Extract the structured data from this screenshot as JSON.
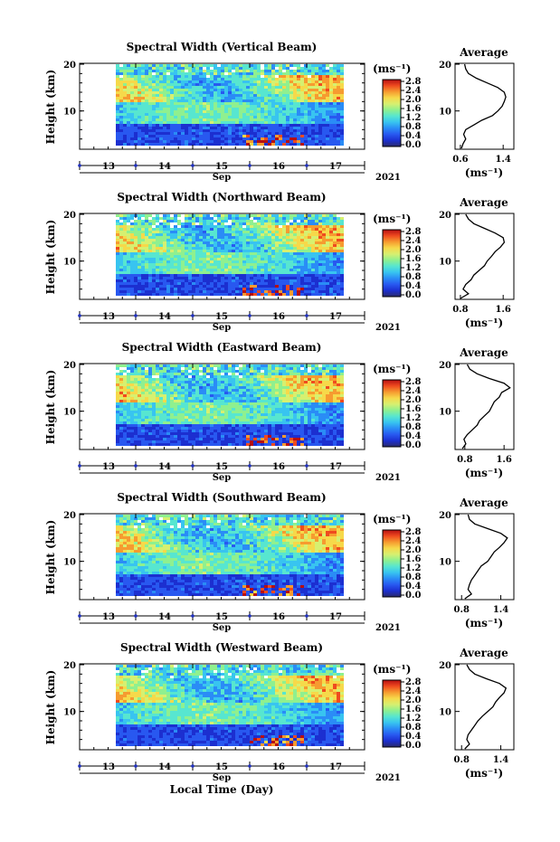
{
  "footer": {
    "xlabel": "Local Time (Day)"
  },
  "colorbar": {
    "unit_label": "(ms⁻¹)",
    "ticks": [
      "0.0",
      "0.4",
      "0.8",
      "1.2",
      "1.6",
      "2.0",
      "2.4",
      "2.8"
    ],
    "colors": [
      "#2a2a6a",
      "#1c2fd0",
      "#2858f0",
      "#2a8cf6",
      "#38c4f0",
      "#57e6d0",
      "#8ff08f",
      "#d6f070",
      "#f6d94a",
      "#f69b30",
      "#ef4b1f",
      "#b50f12"
    ]
  },
  "chart_data": [
    {
      "type": "heatmap",
      "title": "Spectral Width (Vertical Beam)",
      "ylabel": "Height (km)",
      "ylim": [
        2,
        20
      ],
      "yticks": [
        "10",
        "20"
      ],
      "xticks": [
        "13",
        "14",
        "15",
        "16",
        "17"
      ],
      "month_label": "Sep",
      "year_label": "2021",
      "z_label": "(ms⁻¹)",
      "z_range": [
        0.0,
        3.0
      ],
      "average_profile": {
        "title": "Average",
        "xlabel": "(ms⁻¹)",
        "xticks": [
          "0.6",
          "1.4"
        ],
        "xlim": [
          0.5,
          1.6
        ],
        "ytick": [
          "10",
          "20"
        ],
        "heights": [
          2,
          3,
          4,
          5,
          6,
          7,
          8,
          9,
          10,
          11,
          12,
          13,
          14,
          15,
          16,
          17,
          18,
          19,
          20
        ],
        "values": [
          0.62,
          0.65,
          0.7,
          0.66,
          0.7,
          0.85,
          1.0,
          1.2,
          1.3,
          1.38,
          1.42,
          1.45,
          1.42,
          1.3,
          1.1,
          0.9,
          0.75,
          0.7,
          0.68
        ]
      }
    },
    {
      "type": "heatmap",
      "title": "Spectral Width (Northward Beam)",
      "ylabel": "Height (km)",
      "ylim": [
        2,
        20
      ],
      "yticks": [
        "10",
        "20"
      ],
      "xticks": [
        "13",
        "14",
        "15",
        "16",
        "17"
      ],
      "month_label": "Sep",
      "year_label": "2021",
      "z_label": "(ms⁻¹)",
      "z_range": [
        0.0,
        3.0
      ],
      "average_profile": {
        "title": "Average",
        "xlabel": "(ms⁻¹)",
        "xticks": [
          "0.8",
          "1.6"
        ],
        "xlim": [
          0.7,
          1.8
        ],
        "heights": [
          2,
          3,
          4,
          5,
          6,
          7,
          8,
          9,
          10,
          11,
          12,
          13,
          14,
          15,
          16,
          17,
          18,
          19,
          20
        ],
        "values": [
          0.8,
          0.95,
          0.85,
          0.9,
          1.0,
          1.05,
          1.15,
          1.25,
          1.3,
          1.38,
          1.45,
          1.55,
          1.62,
          1.6,
          1.45,
          1.25,
          1.05,
          0.95,
          0.9
        ]
      }
    },
    {
      "type": "heatmap",
      "title": "Spectral Width (Eastward Beam)",
      "ylabel": "Height (km)",
      "ylim": [
        2,
        20
      ],
      "yticks": [
        "10",
        "20"
      ],
      "xticks": [
        "13",
        "14",
        "15",
        "16",
        "17"
      ],
      "month_label": "Sep",
      "year_label": "2021",
      "z_label": "(ms⁻¹)",
      "z_range": [
        0.0,
        3.0
      ],
      "average_profile": {
        "title": "Average",
        "xlabel": "(ms⁻¹)",
        "xticks": [
          "0.8",
          "1.6"
        ],
        "xlim": [
          0.6,
          1.8
        ],
        "heights": [
          2,
          3,
          4,
          5,
          6,
          7,
          8,
          9,
          10,
          11,
          12,
          13,
          14,
          15,
          16,
          17,
          18,
          19,
          20
        ],
        "values": [
          0.75,
          0.82,
          0.78,
          0.85,
          0.95,
          1.05,
          1.1,
          1.2,
          1.3,
          1.35,
          1.4,
          1.5,
          1.55,
          1.72,
          1.6,
          1.3,
          1.05,
          0.9,
          0.85
        ]
      }
    },
    {
      "type": "heatmap",
      "title": "Spectral Width (Southward Beam)",
      "ylabel": "Height (km)",
      "ylim": [
        2,
        20
      ],
      "yticks": [
        "10",
        "20"
      ],
      "xticks": [
        "13",
        "14",
        "15",
        "16",
        "17"
      ],
      "month_label": "Sep",
      "year_label": "2021",
      "z_label": "(ms⁻¹)",
      "z_range": [
        0.0,
        3.0
      ],
      "average_profile": {
        "title": "Average",
        "xlabel": "(ms⁻¹)",
        "xticks": [
          "0.8",
          "1.4"
        ],
        "xlim": [
          0.7,
          1.6
        ],
        "heights": [
          2,
          3,
          4,
          5,
          6,
          7,
          8,
          9,
          10,
          11,
          12,
          13,
          14,
          15,
          16,
          17,
          18,
          19,
          20
        ],
        "values": [
          0.85,
          0.95,
          0.9,
          0.92,
          0.95,
          1.0,
          1.05,
          1.1,
          1.2,
          1.25,
          1.3,
          1.38,
          1.45,
          1.5,
          1.4,
          1.2,
          1.0,
          0.92,
          0.9
        ]
      }
    },
    {
      "type": "heatmap",
      "title": "Spectral Width (Westward Beam)",
      "ylabel": "Height (km)",
      "ylim": [
        2,
        20
      ],
      "yticks": [
        "10",
        "20"
      ],
      "xticks": [
        "13",
        "14",
        "15",
        "16",
        "17"
      ],
      "month_label": "Sep",
      "year_label": "2021",
      "z_label": "(ms⁻¹)",
      "z_range": [
        0.0,
        3.0
      ],
      "average_profile": {
        "title": "Average",
        "xlabel": "(ms⁻¹)",
        "xticks": [
          "0.8",
          "1.4"
        ],
        "xlim": [
          0.7,
          1.6
        ],
        "heights": [
          2,
          3,
          4,
          5,
          6,
          7,
          8,
          9,
          10,
          11,
          12,
          13,
          14,
          15,
          16,
          17,
          18,
          19,
          20
        ],
        "values": [
          0.85,
          0.92,
          0.88,
          0.9,
          0.95,
          1.0,
          1.05,
          1.12,
          1.2,
          1.28,
          1.32,
          1.38,
          1.45,
          1.48,
          1.38,
          1.18,
          1.0,
          0.92,
          0.88
        ]
      }
    }
  ]
}
